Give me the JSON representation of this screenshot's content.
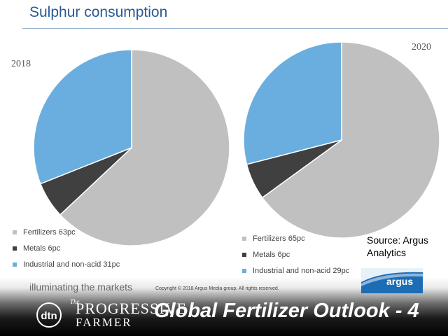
{
  "page": {
    "title": "Sulphur consumption",
    "source": "Source: Argus Analytics",
    "tagline": "illuminating the markets",
    "copyright": "Copyright © 2018 Argus Media group. All rights reserved.",
    "footer_title": "Global Fertilizer Outlook - 4",
    "argus_logo_text": "argus",
    "dtn_logo_text": "dtn",
    "pf_logo": {
      "line1": "The",
      "line2": "PROGRESSIVE",
      "line3": "FARMER"
    }
  },
  "colors": {
    "fertilizers": "#c0c0c0",
    "metals": "#404040",
    "industrial": "#6aaedf",
    "title": "#2a5b93"
  },
  "chart_data": [
    {
      "type": "pie",
      "title": "2018",
      "slices": [
        {
          "label": "Fertilizers 63pc",
          "value": 63,
          "color": "#c0c0c0"
        },
        {
          "label": "Metals 6pc",
          "value": 6,
          "color": "#404040"
        },
        {
          "label": "Industrial and non-acid 31pc",
          "value": 31,
          "color": "#6aaedf"
        }
      ],
      "legend_position": "bottom-left"
    },
    {
      "type": "pie",
      "title": "2020",
      "slices": [
        {
          "label": "Fertilizers 65pc",
          "value": 65,
          "color": "#c0c0c0"
        },
        {
          "label": "Metals 6pc",
          "value": 6,
          "color": "#404040"
        },
        {
          "label": "Industrial and non-acid 29pc",
          "value": 29,
          "color": "#6aaedf"
        }
      ],
      "legend_position": "bottom"
    }
  ]
}
